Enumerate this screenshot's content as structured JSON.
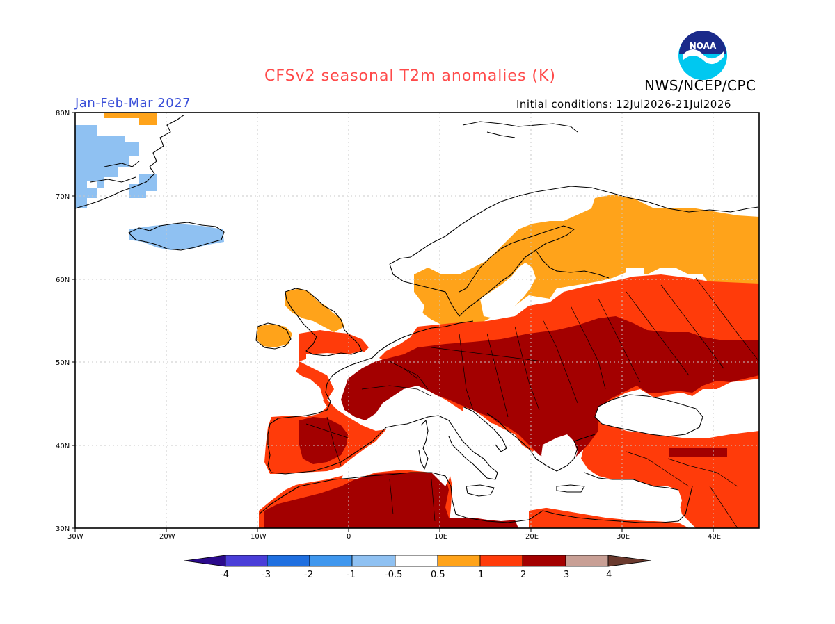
{
  "header": {
    "title": "CFSv2 seasonal T2m anomalies (K)",
    "agency": "NWS/NCEP/CPC",
    "period": "Jan-Feb-Mar 2027",
    "ic_label": "Initial conditions:",
    "ic_range": "12Jul2026-21Jul2026",
    "logo_text": "NOAA"
  },
  "axes": {
    "lat_labels": [
      "80N",
      "70N",
      "60N",
      "50N",
      "40N",
      "30N"
    ],
    "lon_labels": [
      "30W",
      "20W",
      "10W",
      "0",
      "10E",
      "20E",
      "30E",
      "40E"
    ],
    "lat_range": [
      30,
      80
    ],
    "lon_range": [
      -30,
      45
    ]
  },
  "legend": {
    "labels": [
      "-4",
      "-3",
      "-2",
      "-1",
      "-0.5",
      "0.5",
      "1",
      "2",
      "3",
      "4"
    ],
    "colors": {
      "lt_-4": "#2b0a8c",
      "-4_-3": "#4a3ed8",
      "-3_-2": "#1f6fe0",
      "-2_-1": "#3f97ee",
      "-1_-0.5": "#8fc1f2",
      "-0.5_0.5": "#ffffff",
      "0.5_1": "#ffa31a",
      "1_2": "#ff3b0a",
      "2_3": "#a30000",
      "3_4": "#c89f95",
      "gt_4": "#6b3a2e"
    }
  },
  "anomaly_fields": {
    "cold": {
      "color": "#8fc1f2",
      "region": "Greenland / Iceland"
    },
    "warm_light": {
      "color": "#ffa31a",
      "region": "Scandinavia / NW Russia"
    },
    "warm": {
      "color": "#ff3b0a",
      "region": "W Europe / E Europe / Turkey / N Africa"
    },
    "warm_strong": {
      "color": "#a30000",
      "region": "Central Europe / Balkans / Ukraine / Sahara"
    }
  }
}
